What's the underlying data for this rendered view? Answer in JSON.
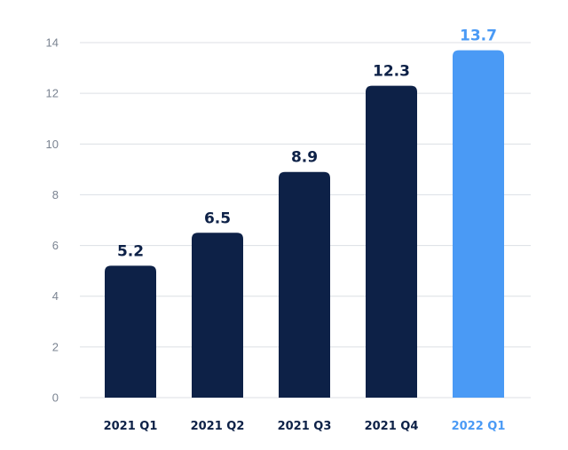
{
  "chart_data": {
    "type": "bar",
    "categories": [
      "2021 Q1",
      "2021 Q2",
      "2021 Q3",
      "2021 Q4",
      "2022 Q1"
    ],
    "values": [
      5.2,
      6.5,
      8.9,
      12.3,
      13.7
    ],
    "data_labels": [
      "5.2",
      "6.5",
      "8.9",
      "12.3",
      "13.7"
    ],
    "y_ticks": [
      "0",
      "2",
      "4",
      "6",
      "8",
      "10",
      "12",
      "14"
    ],
    "ylim": [
      0,
      14
    ],
    "grid": true,
    "legend": "none",
    "colors": {
      "bar": "#0d2147",
      "highlight_bar": "#4a9af5",
      "label": "#0d2147",
      "highlight_label": "#4a9af5",
      "axis_tick": "#7a8391",
      "grid": "#dcdfe4"
    },
    "highlight_index": 4
  }
}
